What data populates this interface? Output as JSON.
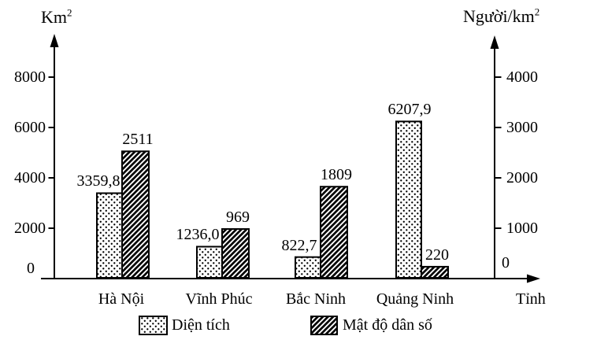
{
  "chart_data": {
    "type": "bar",
    "title": "",
    "categories": [
      "Hà Nội",
      "Vĩnh Phúc",
      "Bắc Ninh",
      "Quảng Ninh"
    ],
    "series": [
      {
        "name": "Diện tích",
        "axis": "left",
        "unit": "km²",
        "pattern": "dots",
        "values": [
          3359.8,
          1236.0,
          822.7,
          6207.9
        ],
        "value_labels": [
          "3359,8",
          "1236,0",
          "822,7",
          "6207,9"
        ]
      },
      {
        "name": "Mật độ dân số",
        "axis": "right",
        "unit": "người/km²",
        "pattern": "diagonal-hatch",
        "values": [
          2511,
          969,
          1809,
          220
        ],
        "value_labels": [
          "2511",
          "969",
          "1809",
          "220"
        ]
      }
    ],
    "left_axis": {
      "title_base": "Km",
      "title_sup": "2",
      "ticks": [
        0,
        2000,
        4000,
        6000,
        8000
      ],
      "tick_labels": [
        "0",
        "2000",
        "4000",
        "6000",
        "8000"
      ],
      "range": [
        0,
        8000
      ]
    },
    "right_axis": {
      "title_base": "Người/km",
      "title_sup": "2",
      "ticks": [
        0,
        1000,
        2000,
        3000,
        4000
      ],
      "tick_labels": [
        "0",
        "1000",
        "2000",
        "3000",
        "4000"
      ],
      "range": [
        0,
        4000
      ]
    },
    "x_axis": {
      "title": "Tỉnh"
    },
    "grid": false,
    "legend_position": "bottom",
    "colors": {
      "ink": "#000000",
      "background": "#ffffff"
    }
  }
}
